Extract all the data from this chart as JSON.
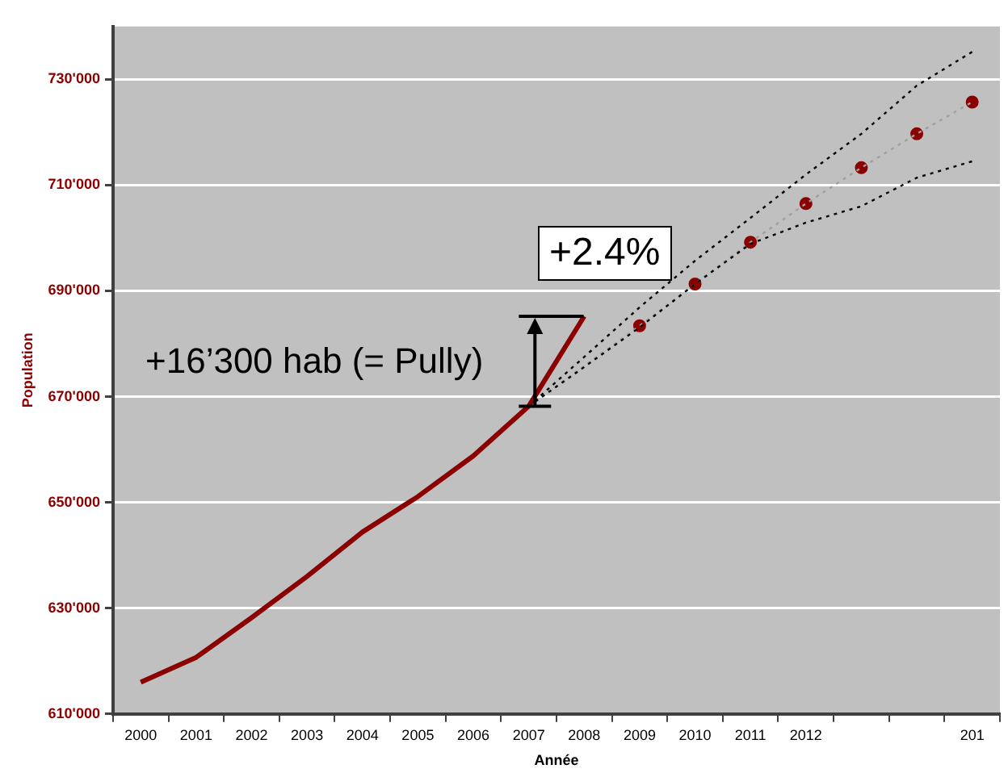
{
  "chart_data": {
    "type": "line",
    "xlabel": "Année",
    "ylabel": "Population",
    "categories": [
      "2000",
      "2001",
      "2002",
      "2003",
      "2004",
      "2005",
      "2006",
      "2007",
      "2008",
      "2009",
      "2010",
      "2011",
      "2012",
      null,
      null,
      "201"
    ],
    "ylim": [
      610000,
      740000
    ],
    "yticks": [
      {
        "value": 610000,
        "label": "610'000"
      },
      {
        "value": 630000,
        "label": "630'000"
      },
      {
        "value": 650000,
        "label": "650'000"
      },
      {
        "value": 670000,
        "label": "670'000"
      },
      {
        "value": 690000,
        "label": "690'000"
      },
      {
        "value": 710000,
        "label": "710'000"
      },
      {
        "value": 730000,
        "label": "730'000"
      }
    ],
    "grid": "y",
    "legend": false,
    "series": [
      {
        "type": "line",
        "color": "#8b0000",
        "line_style": "solid",
        "marker": "none",
        "values": [
          616000,
          620700,
          628200,
          636000,
          644400,
          651100,
          658800,
          668200,
          685200,
          null,
          null,
          null,
          null,
          null,
          null,
          null
        ]
      },
      {
        "type": "line",
        "color": "#000000",
        "line_style": "dotted",
        "marker": "none",
        "values": [
          null,
          null,
          null,
          null,
          null,
          null,
          null,
          668200,
          677500,
          686900,
          695700,
          703800,
          712000,
          719700,
          728800,
          735200
        ]
      },
      {
        "type": "line",
        "color": "#000000",
        "line_style": "dotted",
        "marker": "none",
        "values": [
          null,
          null,
          null,
          null,
          null,
          null,
          null,
          668200,
          675600,
          683100,
          691300,
          698900,
          702900,
          706000,
          711400,
          714500
        ]
      },
      {
        "type": "line",
        "color": "#a0a0a0",
        "line_style": "dotted",
        "marker": "none",
        "values": [
          null,
          null,
          null,
          null,
          null,
          null,
          null,
          668200,
          675800,
          683400,
          691300,
          699200,
          706500,
          713300,
          719700,
          725700
        ]
      },
      {
        "type": "scatter",
        "color": "#8b0000",
        "marker": "circle",
        "values": [
          null,
          null,
          null,
          null,
          null,
          null,
          null,
          null,
          null,
          683400,
          691300,
          699200,
          706500,
          713300,
          719700,
          725700
        ]
      }
    ],
    "annotations": [
      "+2.4%",
      {
        "text": "+16’300 hab (= Pully)",
        "x": "2008",
        "y": 685200
      }
    ]
  }
}
